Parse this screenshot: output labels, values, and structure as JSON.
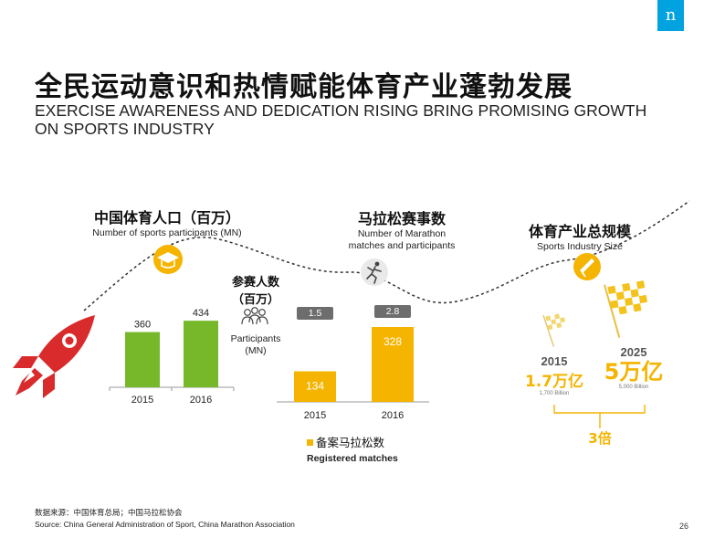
{
  "logo": "n",
  "title_cn": "全民运动意识和热情赋能体育产业蓬勃发展",
  "title_en_line1": "EXERCISE AWARENESS AND DEDICATION RISING BRING PROMISING GROWTH",
  "title_en_line2": "ON SPORTS INDUSTRY",
  "sections": {
    "participants": {
      "title_cn": "中国体育人口（百万）",
      "title_en": "Number of sports participants (MN)"
    },
    "marathon": {
      "title_cn": "马拉松赛事数",
      "title_en_line1": "Number of Marathon",
      "title_en_line2": "matches and participants"
    },
    "industry": {
      "title_cn": "体育产业总规模",
      "title_en": "Sports Industry Size"
    }
  },
  "participants_note": {
    "cn_line1": "参赛人数",
    "cn_line2": "（百万）",
    "en_line1": "Participants",
    "en_line2": "(MN)"
  },
  "legend": {
    "label_cn": "备案马拉松数",
    "label_en": "Registered matches"
  },
  "industry": {
    "left": {
      "year": "2015",
      "value_cn": "1.7万亿",
      "value_en": "1,700 Billion"
    },
    "right": {
      "year": "2025",
      "value_cn": "5万亿",
      "value_en": "5,000 Billion"
    },
    "multiplier": "3倍"
  },
  "source_cn": "数据来源：中国体育总局；中国马拉松协会",
  "source_en": "Source: China General Administration of Sport, China Marathon Association",
  "page_number": "26",
  "colors": {
    "green": "#77b82a",
    "gold": "#f4b400",
    "gray_badge": "#6d6d6d",
    "red_rocket": "#d92b2b",
    "logo_blue": "#00a3e0"
  },
  "icons": [
    "rocket-icon",
    "graduation-cap-icon",
    "people-group-icon",
    "runner-icon",
    "megaphone-icon",
    "checkered-flag-icon"
  ],
  "chart_data": [
    {
      "type": "bar",
      "title": "中国体育人口（百万）",
      "categories": [
        "2015",
        "2016"
      ],
      "values": [
        360,
        434
      ],
      "color": "#77b82a"
    },
    {
      "type": "bar",
      "title": "马拉松赛事数",
      "categories": [
        "2015",
        "2016"
      ],
      "series": [
        {
          "name": "备案马拉松数",
          "values": [
            134,
            328
          ]
        },
        {
          "name": "参赛人数（百万）",
          "values": [
            1.5,
            2.8
          ]
        }
      ],
      "color": "#f4b400"
    }
  ]
}
